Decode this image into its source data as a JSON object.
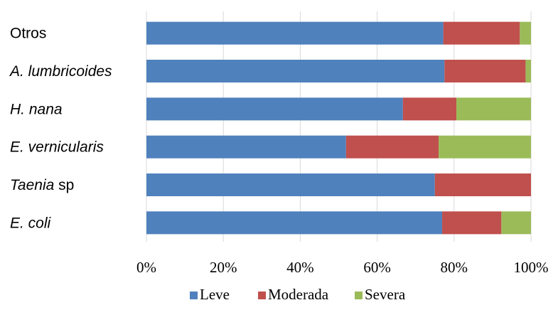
{
  "chart_data": {
    "type": "bar",
    "orientation": "horizontal",
    "stacked": "percent",
    "categories": [
      {
        "parts": [
          {
            "text": "Otros",
            "italic": false
          }
        ]
      },
      {
        "parts": [
          {
            "text": "A. lumbricoides",
            "italic": true
          }
        ]
      },
      {
        "parts": [
          {
            "text": "H. nana",
            "italic": true
          }
        ]
      },
      {
        "parts": [
          {
            "text": "E. vernicularis",
            "italic": true
          }
        ]
      },
      {
        "parts": [
          {
            "text": "Taenia",
            "italic": true
          },
          {
            "text": " sp",
            "italic": false
          }
        ]
      },
      {
        "parts": [
          {
            "text": "E. coli",
            "italic": true
          }
        ]
      }
    ],
    "series": [
      {
        "name": "Leve",
        "color": "#4f81bd",
        "values": [
          77.2,
          77.5,
          66.7,
          51.9,
          75.0,
          76.9
        ]
      },
      {
        "name": "Moderada",
        "color": "#c0504d",
        "values": [
          19.9,
          21.1,
          13.9,
          24.1,
          25.0,
          15.4
        ]
      },
      {
        "name": "Severa",
        "color": "#9bbb59",
        "values": [
          2.9,
          1.4,
          19.4,
          24.0,
          0.0,
          7.7
        ]
      }
    ],
    "xticks": [
      "0%",
      "20%",
      "40%",
      "60%",
      "80%",
      "100%"
    ],
    "xlim": [
      0,
      100
    ],
    "grid": true,
    "legend_position": "bottom"
  }
}
